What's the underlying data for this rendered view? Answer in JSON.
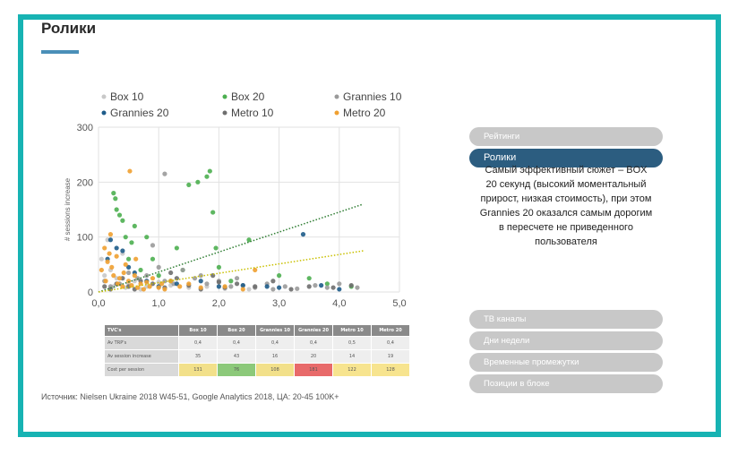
{
  "slide": {
    "title": "Ролики",
    "source": "Источник: Nielsen Ukraine 2018 W45-51, Google Analytics 2018, ЦА: 20-45 100K+",
    "accent_color": "#17b3b3"
  },
  "nav": {
    "top": [
      {
        "label": "Рейтинги",
        "active": false
      },
      {
        "label": "Ролики",
        "active": true
      }
    ],
    "description": "Самый эффективный сюжет – BOX 20 секунд (высокий моментальный прирост, низкая стоимость), при этом Grannies 20 оказался самым дорогим в пересчете не приведенного пользователя",
    "bottom": [
      {
        "label": "ТВ каналы"
      },
      {
        "label": "Дни недели"
      },
      {
        "label": "Временные промежутки"
      },
      {
        "label": "Позиции в блоке"
      }
    ]
  },
  "chart_data": {
    "type": "scatter",
    "ylabel": "# sessions increase",
    "xlabel": "",
    "xlim": [
      0,
      5
    ],
    "ylim": [
      0,
      300
    ],
    "x_ticks": [
      "0,0",
      "1,0",
      "2,0",
      "3,0",
      "4,0",
      "5,0"
    ],
    "y_ticks": [
      "0",
      "100",
      "200",
      "300"
    ],
    "grid": true,
    "legend_position": "top",
    "series": [
      {
        "name": "Box 10",
        "color": "#c8c8c8",
        "points": [
          [
            0.05,
            60
          ],
          [
            0.1,
            30
          ],
          [
            0.15,
            95
          ],
          [
            0.2,
            40
          ],
          [
            0.3,
            25
          ],
          [
            0.4,
            70
          ],
          [
            0.5,
            15
          ],
          [
            0.6,
            20
          ],
          [
            0.8,
            10
          ],
          [
            1.0,
            18
          ],
          [
            1.2,
            12
          ],
          [
            1.5,
            8
          ],
          [
            1.8,
            10
          ],
          [
            2.1,
            6
          ],
          [
            2.5,
            5
          ],
          [
            0.25,
            10
          ],
          [
            0.45,
            8
          ],
          [
            0.7,
            5
          ]
        ]
      },
      {
        "name": "Box 20",
        "color": "#4caf50",
        "points": [
          [
            0.25,
            180
          ],
          [
            0.28,
            170
          ],
          [
            0.3,
            150
          ],
          [
            0.35,
            140
          ],
          [
            0.4,
            130
          ],
          [
            0.45,
            100
          ],
          [
            0.5,
            60
          ],
          [
            0.6,
            120
          ],
          [
            0.55,
            90
          ],
          [
            0.7,
            40
          ],
          [
            0.8,
            100
          ],
          [
            0.9,
            60
          ],
          [
            1.0,
            30
          ],
          [
            1.2,
            20
          ],
          [
            1.3,
            80
          ],
          [
            1.5,
            195
          ],
          [
            1.65,
            200
          ],
          [
            1.8,
            210
          ],
          [
            1.85,
            220
          ],
          [
            1.9,
            145
          ],
          [
            1.95,
            80
          ],
          [
            2.0,
            45
          ],
          [
            2.5,
            95
          ],
          [
            3.0,
            30
          ],
          [
            3.5,
            25
          ],
          [
            3.8,
            15
          ],
          [
            4.2,
            10
          ],
          [
            1.4,
            40
          ],
          [
            2.2,
            20
          ]
        ]
      },
      {
        "name": "Grannies 10",
        "color": "#9a9a9a",
        "points": [
          [
            0.1,
            20
          ],
          [
            0.2,
            10
          ],
          [
            0.35,
            15
          ],
          [
            0.5,
            35
          ],
          [
            0.65,
            25
          ],
          [
            0.8,
            30
          ],
          [
            1.0,
            45
          ],
          [
            1.1,
            20
          ],
          [
            1.25,
            15
          ],
          [
            1.4,
            40
          ],
          [
            1.6,
            25
          ],
          [
            1.8,
            15
          ],
          [
            2.0,
            20
          ],
          [
            2.2,
            10
          ],
          [
            2.4,
            12
          ],
          [
            2.6,
            8
          ],
          [
            2.9,
            5
          ],
          [
            3.1,
            10
          ],
          [
            3.3,
            6
          ],
          [
            3.6,
            12
          ],
          [
            3.8,
            8
          ],
          [
            4.0,
            15
          ],
          [
            4.3,
            8
          ],
          [
            0.9,
            85
          ],
          [
            1.1,
            215
          ],
          [
            1.7,
            30
          ],
          [
            2.3,
            25
          ],
          [
            2.8,
            15
          ]
        ]
      },
      {
        "name": "Grannies 20",
        "color": "#1e5c8a",
        "points": [
          [
            0.2,
            95
          ],
          [
            0.3,
            80
          ],
          [
            0.4,
            75
          ],
          [
            0.6,
            35
          ],
          [
            0.8,
            20
          ],
          [
            1.0,
            10
          ],
          [
            1.3,
            15
          ],
          [
            1.7,
            20
          ],
          [
            2.0,
            10
          ],
          [
            2.4,
            12
          ],
          [
            2.8,
            10
          ],
          [
            3.0,
            8
          ],
          [
            3.4,
            105
          ],
          [
            3.7,
            12
          ],
          [
            4.0,
            5
          ],
          [
            0.15,
            60
          ],
          [
            0.5,
            45
          ]
        ]
      },
      {
        "name": "Metro 10",
        "color": "#6e6e6e",
        "points": [
          [
            0.1,
            10
          ],
          [
            0.2,
            5
          ],
          [
            0.3,
            15
          ],
          [
            0.5,
            10
          ],
          [
            0.7,
            20
          ],
          [
            0.9,
            15
          ],
          [
            1.1,
            8
          ],
          [
            1.3,
            25
          ],
          [
            1.5,
            12
          ],
          [
            1.7,
            5
          ],
          [
            1.9,
            30
          ],
          [
            2.1,
            8
          ],
          [
            2.3,
            15
          ],
          [
            2.6,
            10
          ],
          [
            2.9,
            20
          ],
          [
            3.2,
            5
          ],
          [
            3.5,
            10
          ],
          [
            3.9,
            8
          ],
          [
            4.2,
            12
          ],
          [
            0.4,
            25
          ],
          [
            0.6,
            5
          ],
          [
            1.2,
            35
          ],
          [
            2.0,
            18
          ]
        ]
      },
      {
        "name": "Metro 20",
        "color": "#f0a030",
        "points": [
          [
            0.05,
            40
          ],
          [
            0.1,
            80
          ],
          [
            0.12,
            20
          ],
          [
            0.15,
            55
          ],
          [
            0.2,
            105
          ],
          [
            0.22,
            45
          ],
          [
            0.25,
            30
          ],
          [
            0.3,
            65
          ],
          [
            0.32,
            15
          ],
          [
            0.35,
            25
          ],
          [
            0.4,
            10
          ],
          [
            0.45,
            50
          ],
          [
            0.5,
            20
          ],
          [
            0.55,
            12
          ],
          [
            0.6,
            30
          ],
          [
            0.65,
            8
          ],
          [
            0.7,
            15
          ],
          [
            0.75,
            5
          ],
          [
            0.8,
            18
          ],
          [
            0.85,
            10
          ],
          [
            0.9,
            25
          ],
          [
            1.0,
            8
          ],
          [
            1.05,
            15
          ],
          [
            1.1,
            5
          ],
          [
            1.2,
            20
          ],
          [
            1.35,
            10
          ],
          [
            1.5,
            15
          ],
          [
            1.7,
            8
          ],
          [
            2.1,
            10
          ],
          [
            2.4,
            5
          ],
          [
            2.6,
            40
          ],
          [
            0.52,
            220
          ],
          [
            0.18,
            70
          ],
          [
            0.42,
            35
          ],
          [
            0.62,
            60
          ]
        ]
      }
    ],
    "trendlines": [
      {
        "series": "Box 20",
        "from": [
          0.0,
          0.0
        ],
        "to": [
          4.4,
          160
        ]
      },
      {
        "series": "Metro 20",
        "from": [
          0.0,
          0.0
        ],
        "to": [
          4.4,
          75
        ]
      }
    ],
    "table": {
      "headers": [
        "TVC's",
        "Box 10",
        "Box 20",
        "Grannies 10",
        "Grannies 20",
        "Metro 10",
        "Metro 20"
      ],
      "rows": [
        {
          "label": "Av TRP's",
          "values": [
            "0,4",
            "0,4",
            "0,4",
            "0,4",
            "0,5",
            "0,4"
          ],
          "colors": [
            "",
            "",
            "",
            "",
            "",
            ""
          ]
        },
        {
          "label": "Av session increase",
          "values": [
            "35",
            "43",
            "16",
            "20",
            "14",
            "19"
          ],
          "colors": [
            "",
            "",
            "",
            "",
            "",
            ""
          ]
        },
        {
          "label": "Cost per session",
          "values": [
            "131",
            "76",
            "108",
            "181",
            "122",
            "128"
          ],
          "colors": [
            "#f2e08a",
            "#8cc97a",
            "#f2e08a",
            "#e86a6a",
            "#f7e48f",
            "#f7e48f"
          ]
        }
      ]
    }
  }
}
